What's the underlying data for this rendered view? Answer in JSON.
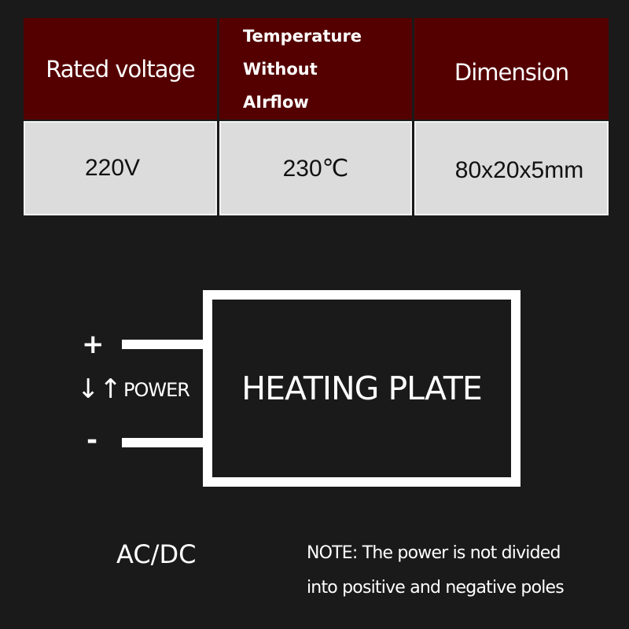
{
  "spec_table": {
    "headers": [
      "Rated voltage",
      [
        "Temperature",
        "Without",
        "AIrflow"
      ],
      "Dimension"
    ],
    "values": [
      "220V",
      "230℃",
      "80x20x5mm"
    ]
  },
  "colors": {
    "background": "#1a1a1a",
    "header": "#550000",
    "cell": "#dcdcdc"
  },
  "diagram": {
    "plus": "+",
    "minus": "-",
    "arrows": "↓↑",
    "power_label": "POWER",
    "plate_label": "HEATING PLATE"
  },
  "footer": {
    "acdc": "AC/DC",
    "note_line1": "NOTE: The power is not divided",
    "note_line2": "into positive and negative poles"
  }
}
